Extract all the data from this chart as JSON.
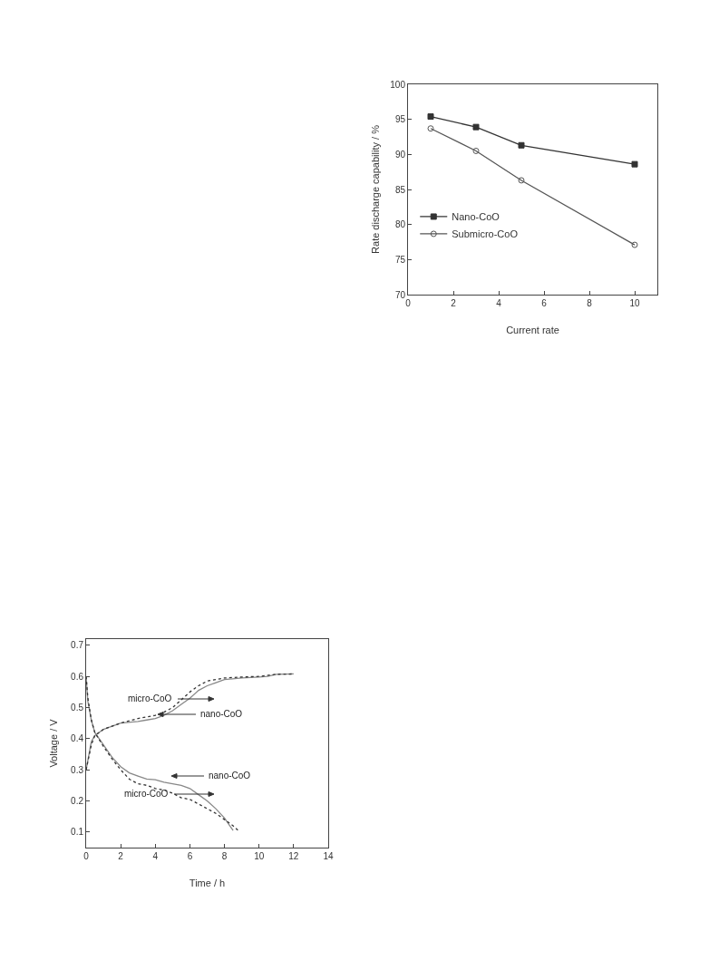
{
  "chart_data": [
    {
      "type": "line",
      "xlabel": "Current rate",
      "ylabel": "Rate discharge capability / %",
      "x": [
        1,
        3,
        5,
        10
      ],
      "xlim": [
        0,
        11
      ],
      "xticks": [
        0,
        2,
        4,
        6,
        8,
        10
      ],
      "ylim": [
        70,
        100
      ],
      "yticks": [
        70,
        75,
        80,
        85,
        90,
        95,
        100
      ],
      "legend": "left",
      "grid": false,
      "series": [
        {
          "name": "Nano-CoO",
          "color": "#333333",
          "marker": "square",
          "values": [
            95.4,
            93.9,
            91.3,
            88.6
          ]
        },
        {
          "name": "Submicro-CoO",
          "color": "#555555",
          "marker": "circle",
          "values": [
            93.7,
            90.5,
            86.3,
            77.1
          ]
        }
      ]
    },
    {
      "type": "line",
      "xlabel": "Time / h",
      "ylabel": "Voltage / V",
      "xlim": [
        0,
        14
      ],
      "xticks": [
        0,
        2,
        4,
        6,
        8,
        10,
        12,
        14
      ],
      "ylim": [
        0.05,
        0.72
      ],
      "yticks": [
        0.1,
        0.2,
        0.3,
        0.4,
        0.5,
        0.6,
        0.7
      ],
      "grid": false,
      "legend": false,
      "marker": "none",
      "series": [
        {
          "color": "#888888",
          "line_style": "solid",
          "x": [
            0,
            0.3,
            0.5,
            1,
            1.5,
            2,
            3,
            3.5,
            4,
            4.5,
            5,
            5.5,
            6,
            6.5,
            7,
            7.5,
            8,
            9,
            10,
            10.5,
            11,
            12
          ],
          "values": [
            0.3,
            0.39,
            0.41,
            0.43,
            0.44,
            0.45,
            0.455,
            0.46,
            0.465,
            0.475,
            0.49,
            0.51,
            0.53,
            0.555,
            0.57,
            0.58,
            0.59,
            0.595,
            0.598,
            0.6,
            0.607,
            0.608
          ]
        },
        {
          "color": "#333333",
          "line_style": "dotted",
          "x": [
            0,
            0.3,
            0.5,
            1,
            2,
            3,
            4,
            4.5,
            5,
            5.5,
            6,
            6.5,
            7,
            7.5,
            8,
            9,
            10,
            11,
            12
          ],
          "values": [
            0.3,
            0.38,
            0.41,
            0.43,
            0.45,
            0.465,
            0.475,
            0.485,
            0.5,
            0.525,
            0.55,
            0.57,
            0.585,
            0.59,
            0.595,
            0.598,
            0.6,
            0.607,
            0.608
          ]
        },
        {
          "color": "#888888",
          "line_style": "solid",
          "x": [
            0,
            0.1,
            0.3,
            0.5,
            1,
            1.5,
            2,
            2.5,
            3,
            3.5,
            4,
            4.5,
            5,
            5.5,
            6,
            6.5,
            7,
            7.5,
            8,
            8.5
          ],
          "values": [
            0.6,
            0.52,
            0.46,
            0.42,
            0.38,
            0.34,
            0.31,
            0.29,
            0.28,
            0.27,
            0.268,
            0.26,
            0.255,
            0.25,
            0.24,
            0.22,
            0.2,
            0.175,
            0.145,
            0.105
          ]
        },
        {
          "color": "#333333",
          "line_style": "dotted",
          "x": [
            0,
            0.1,
            0.3,
            0.5,
            1,
            1.5,
            2,
            2.5,
            3,
            3.5,
            4,
            4.5,
            5,
            5.5,
            6,
            6.5,
            7,
            7.5,
            8,
            8.5,
            8.8
          ],
          "values": [
            0.6,
            0.53,
            0.46,
            0.42,
            0.375,
            0.335,
            0.3,
            0.27,
            0.255,
            0.25,
            0.24,
            0.235,
            0.225,
            0.21,
            0.205,
            0.19,
            0.175,
            0.16,
            0.14,
            0.12,
            0.105
          ]
        }
      ],
      "annotations": [
        "micro-CoO",
        "nano-CoO",
        "nano-CoO",
        "micro-CoO"
      ]
    }
  ]
}
